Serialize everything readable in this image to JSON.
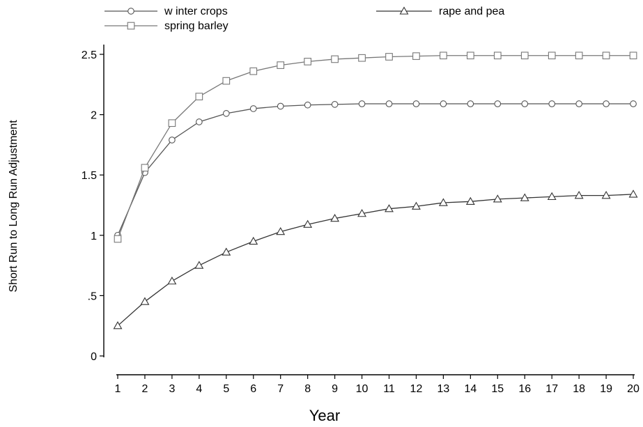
{
  "chart_data": {
    "type": "line",
    "xlabel": "Year",
    "ylabel": "Short Run to Long Run Adjustment",
    "x": [
      1,
      2,
      3,
      4,
      5,
      6,
      7,
      8,
      9,
      10,
      11,
      12,
      13,
      14,
      15,
      16,
      17,
      18,
      19,
      20
    ],
    "xticks": [
      "1",
      "2",
      "3",
      "4",
      "5",
      "6",
      "7",
      "8",
      "9",
      "10",
      "11",
      "12",
      "13",
      "14",
      "15",
      "16",
      "17",
      "18",
      "19",
      "20"
    ],
    "ylim": [
      0,
      2.5
    ],
    "yticks": [
      0,
      0.5,
      1,
      1.5,
      2,
      2.5
    ],
    "ytick_labels": [
      "0",
      ".5",
      "1",
      "1.5",
      "2",
      "2.5"
    ],
    "grid": false,
    "legend_position": "top",
    "series": [
      {
        "name": "w inter crops",
        "marker": "circle",
        "color": "#555555",
        "values": [
          1.0,
          1.52,
          1.79,
          1.94,
          2.01,
          2.05,
          2.07,
          2.08,
          2.085,
          2.09,
          2.09,
          2.09,
          2.09,
          2.09,
          2.09,
          2.09,
          2.09,
          2.09,
          2.09,
          2.09
        ]
      },
      {
        "name": "spring barley",
        "marker": "square",
        "color": "#777777",
        "values": [
          0.97,
          1.56,
          1.93,
          2.15,
          2.28,
          2.36,
          2.41,
          2.44,
          2.46,
          2.47,
          2.48,
          2.485,
          2.49,
          2.49,
          2.49,
          2.49,
          2.49,
          2.49,
          2.49,
          2.49
        ]
      },
      {
        "name": "rape and pea",
        "marker": "triangle",
        "color": "#333333",
        "values": [
          0.25,
          0.45,
          0.62,
          0.75,
          0.86,
          0.95,
          1.03,
          1.09,
          1.14,
          1.18,
          1.22,
          1.24,
          1.27,
          1.28,
          1.3,
          1.31,
          1.32,
          1.33,
          1.33,
          1.34
        ]
      }
    ]
  }
}
